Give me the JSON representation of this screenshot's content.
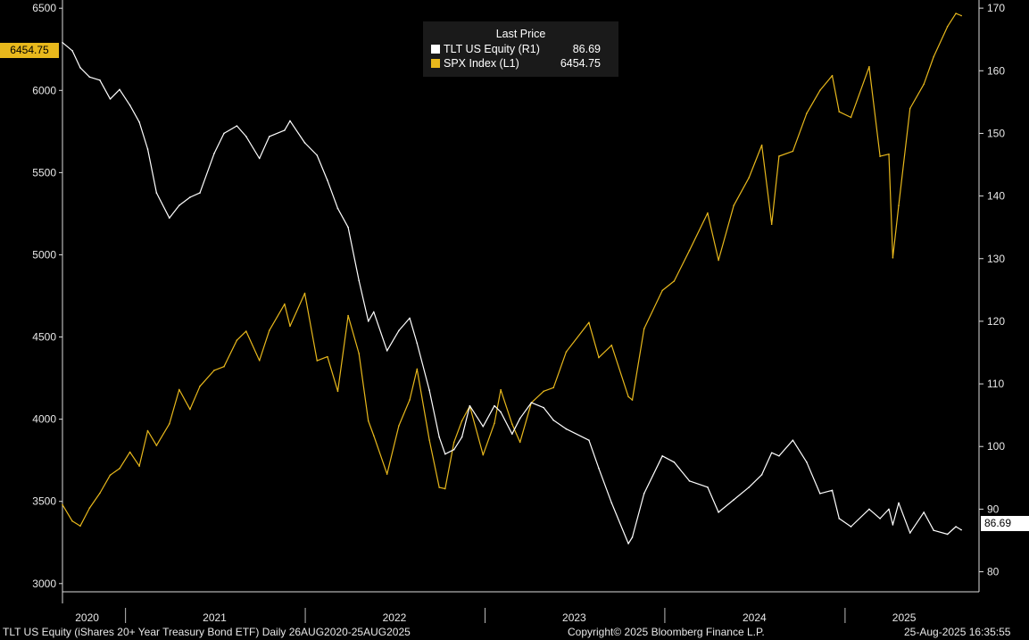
{
  "chart_data": {
    "type": "line",
    "title": "",
    "x": [
      "2020-08-26",
      "2020-09-15",
      "2020-10-01",
      "2020-10-20",
      "2020-11-10",
      "2020-12-01",
      "2020-12-20",
      "2021-01-10",
      "2021-01-29",
      "2021-02-15",
      "2021-03-05",
      "2021-03-31",
      "2021-04-20",
      "2021-05-12",
      "2021-06-01",
      "2021-06-30",
      "2021-07-20",
      "2021-08-15",
      "2021-09-03",
      "2021-09-30",
      "2021-10-20",
      "2021-11-20",
      "2021-12-01",
      "2021-12-31",
      "2022-01-25",
      "2022-02-15",
      "2022-03-08",
      "2022-03-29",
      "2022-04-20",
      "2022-05-09",
      "2022-05-20",
      "2022-06-16",
      "2022-07-10",
      "2022-08-01",
      "2022-08-16",
      "2022-09-10",
      "2022-09-30",
      "2022-10-12",
      "2022-10-30",
      "2022-11-15",
      "2022-12-01",
      "2022-12-28",
      "2023-01-20",
      "2023-02-02",
      "2023-02-25",
      "2023-03-13",
      "2023-04-05",
      "2023-04-30",
      "2023-05-20",
      "2023-06-15",
      "2023-07-31",
      "2023-08-20",
      "2023-09-15",
      "2023-10-19",
      "2023-10-27",
      "2023-11-20",
      "2023-12-27",
      "2024-01-20",
      "2024-02-20",
      "2024-03-28",
      "2024-04-19",
      "2024-05-20",
      "2024-06-20",
      "2024-07-16",
      "2024-08-05",
      "2024-08-20",
      "2024-09-17",
      "2024-10-15",
      "2024-11-11",
      "2024-12-06",
      "2024-12-20",
      "2025-01-13",
      "2025-02-19",
      "2025-03-13",
      "2025-03-31",
      "2025-04-08",
      "2025-04-20",
      "2025-05-13",
      "2025-06-10",
      "2025-06-30",
      "2025-07-28",
      "2025-08-14",
      "2025-08-25"
    ],
    "series": [
      {
        "name": "TLT US Equity (R1)",
        "axis": "right",
        "color": "#ffffff",
        "values": [
          164.5,
          163.2,
          160.5,
          159.0,
          158.5,
          155.5,
          157.0,
          154.5,
          151.8,
          147.5,
          140.5,
          136.5,
          138.5,
          139.8,
          140.5,
          146.8,
          150.0,
          151.2,
          149.5,
          146.0,
          149.5,
          150.5,
          152.0,
          148.5,
          146.5,
          142.5,
          138.0,
          135.0,
          126.5,
          120.0,
          121.5,
          115.3,
          118.5,
          120.5,
          116.5,
          109.0,
          101.5,
          98.8,
          99.5,
          101.5,
          106.5,
          103.2,
          106.5,
          105.5,
          102.0,
          104.5,
          107.0,
          106.2,
          104.2,
          102.8,
          101.0,
          96.5,
          91.0,
          84.5,
          85.5,
          92.5,
          98.5,
          97.5,
          94.5,
          93.5,
          89.5,
          91.5,
          93.5,
          95.5,
          99.0,
          98.5,
          101.0,
          97.5,
          92.5,
          93.0,
          88.5,
          87.2,
          90.0,
          88.5,
          90.0,
          87.5,
          91.0,
          86.2,
          89.5,
          86.6,
          86.0,
          87.2,
          86.69
        ]
      },
      {
        "name": "SPX Index (L1)",
        "axis": "left",
        "color": "#e8b81c",
        "values": [
          3480,
          3380,
          3350,
          3460,
          3550,
          3660,
          3700,
          3800,
          3715,
          3930,
          3840,
          3972,
          4180,
          4060,
          4200,
          4297,
          4320,
          4480,
          4535,
          4357,
          4540,
          4700,
          4566,
          4766,
          4356,
          4380,
          4170,
          4630,
          4400,
          3990,
          3900,
          3666,
          3960,
          4118,
          4305,
          3873,
          3585,
          3577,
          3860,
          3990,
          4080,
          3783,
          3975,
          4179,
          3970,
          3860,
          4100,
          4170,
          4192,
          4410,
          4588,
          4375,
          4450,
          4137,
          4117,
          4550,
          4783,
          4840,
          5026,
          5254,
          4967,
          5300,
          5470,
          5667,
          5186,
          5600,
          5630,
          5860,
          6000,
          6090,
          5870,
          5836,
          6144,
          5599,
          5612,
          4982,
          5300,
          5890,
          6038,
          6205,
          6389,
          6468,
          6454.75
        ]
      }
    ],
    "axes": {
      "left": {
        "min": 2950,
        "max": 6550,
        "ticks": [
          "6500",
          "6000",
          "5500",
          "5000",
          "4500",
          "4000",
          "3500",
          "3000"
        ],
        "tick_values": [
          6500,
          6000,
          5500,
          5000,
          4500,
          4000,
          3500,
          3000
        ]
      },
      "right": {
        "min": 76.8,
        "max": 171.3,
        "ticks": [
          "170",
          "160",
          "150",
          "140",
          "130",
          "120",
          "110",
          "100",
          "90",
          "80"
        ],
        "tick_values": [
          170,
          160,
          150,
          140,
          130,
          120,
          110,
          100,
          90,
          80
        ]
      }
    },
    "x_labels": [
      "2020",
      "2021",
      "2022",
      "2023",
      "2024",
      "2025"
    ],
    "x_label_dates": [
      "2020-10-15",
      "2021-07-01",
      "2022-07-01",
      "2023-07-01",
      "2024-07-01",
      "2025-05-01"
    ],
    "x_separators": [
      "2021-01-01",
      "2022-01-01",
      "2023-01-01",
      "2024-01-01",
      "2025-01-01"
    ],
    "x_range": [
      "2020-08-26",
      "2025-09-30"
    ],
    "grid": false,
    "legend_position": "top-center"
  },
  "legend": {
    "title": "Last Price",
    "items": [
      {
        "name": "TLT US Equity  (R1)",
        "value": "86.69",
        "color": "#ffffff"
      },
      {
        "name": "SPX Index  (L1)",
        "value": "6454.75",
        "color": "#e8b81c"
      }
    ]
  },
  "markers": {
    "left_value": "6454.75",
    "right_value": "86.69"
  },
  "footer": {
    "left": "TLT US Equity (iShares 20+ Year Treasury Bond ETF)  Daily 26AUG2020-25AUG2025",
    "center": "Copyright© 2025 Bloomberg Finance L.P.",
    "right": "25-Aug-2025 16:35:55"
  }
}
